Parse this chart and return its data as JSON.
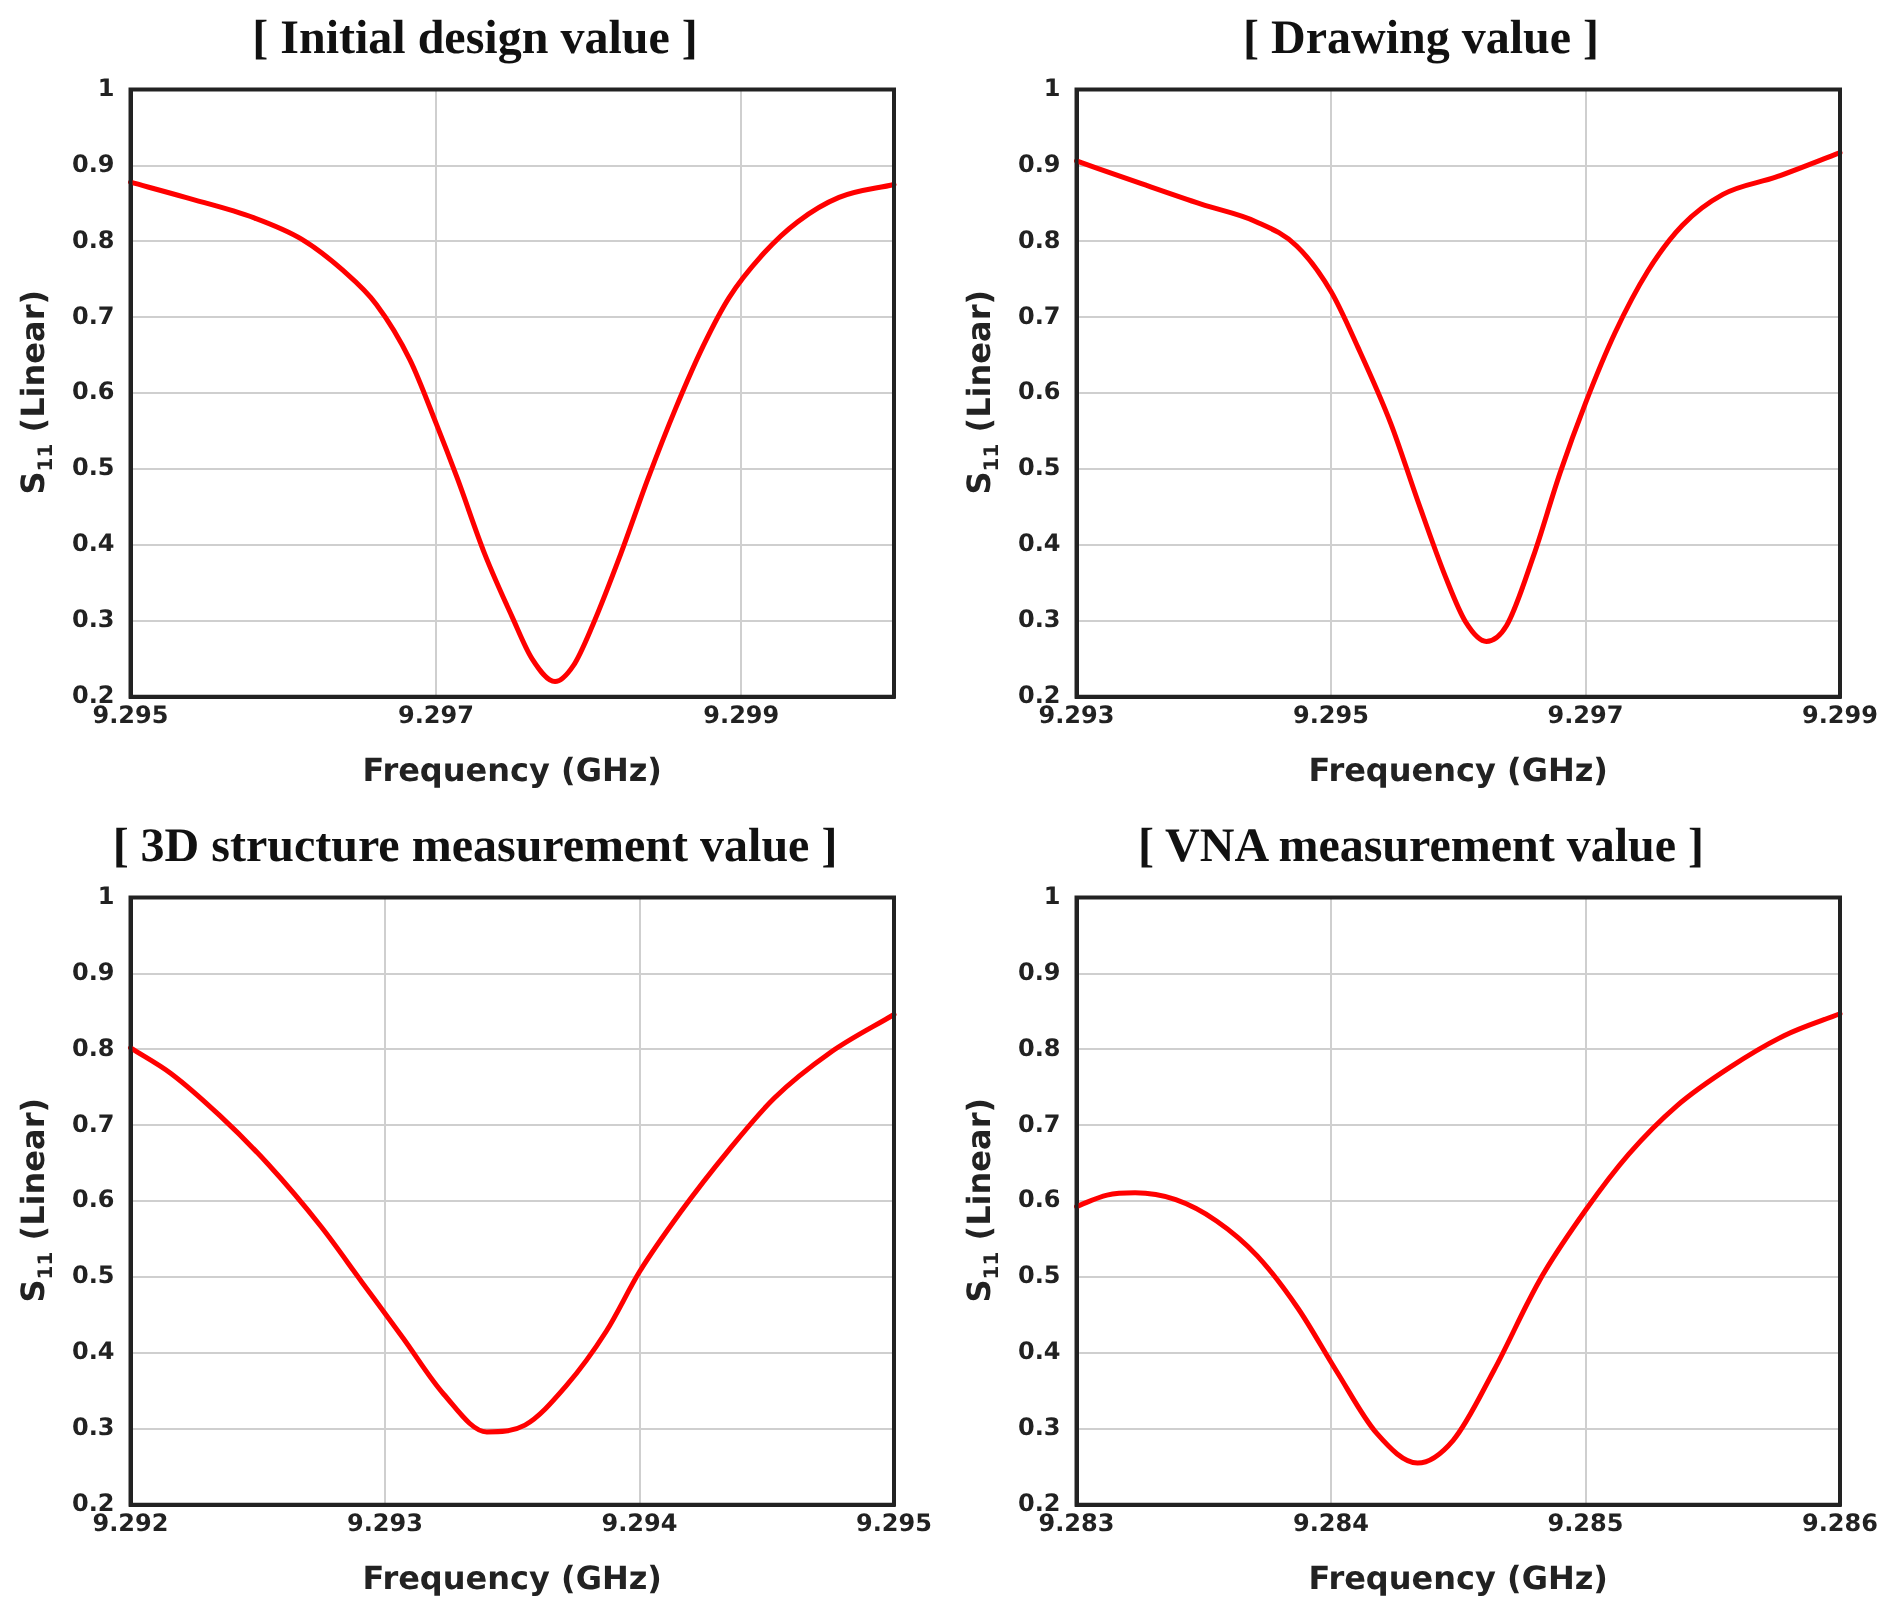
{
  "chart_data": [
    {
      "type": "line",
      "title": "[ Initial design value ]",
      "xlabel": "Frequency (GHz)",
      "ylabel": "S$_{11}$ (Linear)",
      "xlim": [
        9.295,
        9.3
      ],
      "xticks": [
        9.295,
        9.297,
        9.299
      ],
      "ylim": [
        0.2,
        1
      ],
      "yticks": [
        0.2,
        0.3,
        0.4,
        0.5,
        0.6,
        0.7,
        0.8,
        0.9,
        1
      ],
      "grid": true,
      "legend": false,
      "marker": "none",
      "line_style": "solid",
      "series": [
        {
          "color": "#ff0000",
          "x": [
            9.295,
            9.29536,
            9.29581,
            9.29612,
            9.29639,
            9.29661,
            9.29683,
            9.297,
            9.29714,
            9.29732,
            9.2975,
            9.29763,
            9.29778,
            9.2979,
            9.29803,
            9.29821,
            9.29839,
            9.29857,
            9.29875,
            9.29892,
            9.29915,
            9.29937,
            9.29964,
            9.3
          ],
          "values": [
            0.878,
            0.858,
            0.831,
            0.803,
            0.762,
            0.717,
            0.644,
            0.561,
            0.488,
            0.388,
            0.305,
            0.25,
            0.22,
            0.241,
            0.296,
            0.388,
            0.488,
            0.58,
            0.662,
            0.726,
            0.785,
            0.826,
            0.858,
            0.875
          ]
        }
      ]
    },
    {
      "type": "line",
      "title": "[ Drawing value ]",
      "xlabel": "Frequency (GHz)",
      "ylabel": "S$_{11}$ (Linear)",
      "xlim": [
        9.293,
        9.299
      ],
      "xticks": [
        9.293,
        9.295,
        9.297,
        9.299
      ],
      "ylim": [
        0.2,
        1
      ],
      "yticks": [
        0.2,
        0.3,
        0.4,
        0.5,
        0.6,
        0.7,
        0.8,
        0.9,
        1
      ],
      "grid": true,
      "legend": false,
      "marker": "none",
      "line_style": "solid",
      "series": [
        {
          "color": "#ff0000",
          "x": [
            9.293,
            9.29351,
            9.29398,
            9.29441,
            9.29473,
            9.295,
            9.29521,
            9.29547,
            9.29568,
            9.2959,
            9.29606,
            9.29622,
            9.29638,
            9.29659,
            9.2968,
            9.297,
            9.29723,
            9.29749,
            9.29776,
            9.29808,
            9.2985,
            9.299
          ],
          "values": [
            0.906,
            0.876,
            0.849,
            0.826,
            0.794,
            0.734,
            0.661,
            0.56,
            0.459,
            0.358,
            0.298,
            0.273,
            0.294,
            0.385,
            0.495,
            0.587,
            0.679,
            0.761,
            0.821,
            0.862,
            0.885,
            0.917
          ]
        }
      ]
    },
    {
      "type": "line",
      "title": "[ 3D structure measurement value ]",
      "xlabel": "Frequency (GHz)",
      "ylabel": "S$_{11}$ (Linear)",
      "xlim": [
        9.292,
        9.295
      ],
      "xticks": [
        9.292,
        9.293,
        9.294,
        9.295
      ],
      "ylim": [
        0.2,
        1
      ],
      "yticks": [
        0.2,
        0.3,
        0.4,
        0.5,
        0.6,
        0.7,
        0.8,
        0.9,
        1
      ],
      "grid": true,
      "legend": false,
      "marker": "none",
      "line_style": "solid",
      "series": [
        {
          "color": "#ff0000",
          "x": [
            9.292,
            9.29216,
            9.29235,
            9.29254,
            9.29275,
            9.29291,
            9.29307,
            9.29323,
            9.2934,
            9.29355,
            9.29371,
            9.29387,
            9.294,
            9.29416,
            9.29435,
            9.29453,
            9.29475,
            9.295
          ],
          "values": [
            0.802,
            0.768,
            0.713,
            0.649,
            0.566,
            0.493,
            0.42,
            0.346,
            0.296,
            0.305,
            0.356,
            0.429,
            0.507,
            0.585,
            0.667,
            0.736,
            0.796,
            0.846
          ]
        }
      ]
    },
    {
      "type": "line",
      "title": "[ VNA measurement value ]",
      "xlabel": "Frequency (GHz)",
      "ylabel": "S$_{11}$ (Linear)",
      "xlim": [
        9.283,
        9.286
      ],
      "xticks": [
        9.283,
        9.284,
        9.285,
        9.286
      ],
      "ylim": [
        0.2,
        1
      ],
      "yticks": [
        0.2,
        0.3,
        0.4,
        0.5,
        0.6,
        0.7,
        0.8,
        0.9,
        1
      ],
      "grid": true,
      "legend": false,
      "marker": "none",
      "line_style": "solid",
      "series": [
        {
          "color": "#ff0000",
          "x": [
            9.283,
            9.28312,
            9.28323,
            9.28339,
            9.28355,
            9.28371,
            9.28387,
            9.28402,
            9.28418,
            9.28434,
            9.28448,
            9.28464,
            9.28482,
            9.285,
            9.28517,
            9.28536,
            9.28557,
            9.28578,
            9.286
          ],
          "values": [
            0.593,
            0.608,
            0.611,
            0.602,
            0.574,
            0.528,
            0.459,
            0.377,
            0.294,
            0.255,
            0.285,
            0.377,
            0.496,
            0.588,
            0.662,
            0.726,
            0.777,
            0.818,
            0.847
          ]
        }
      ]
    }
  ]
}
